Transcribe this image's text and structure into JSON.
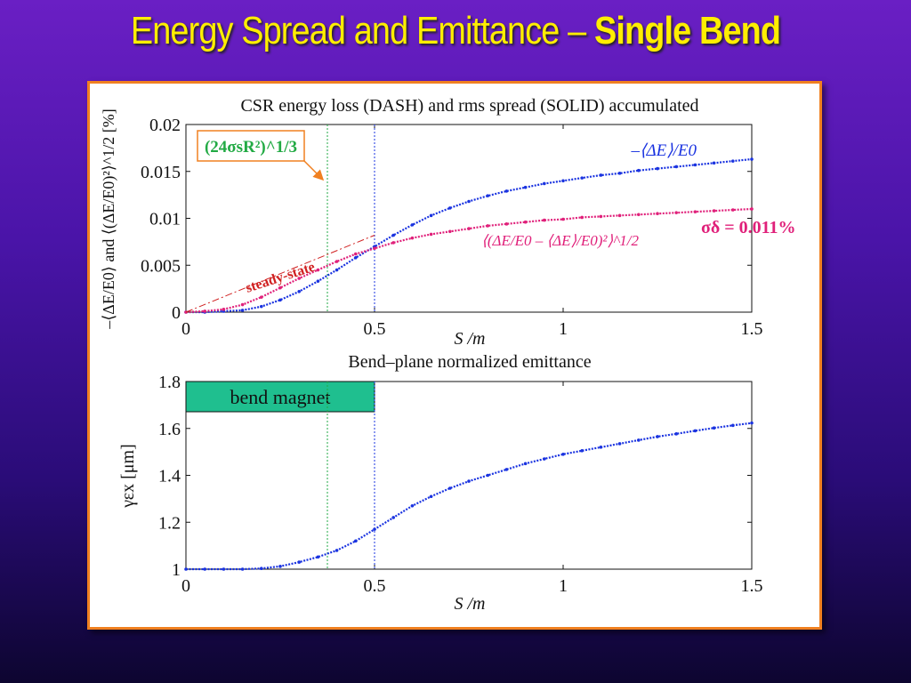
{
  "slide": {
    "title_main": "Energy Spread and Emittance – ",
    "title_bold": "Single Bend"
  },
  "colors": {
    "blue": "#1a33e0",
    "magenta": "#e0207a",
    "green": "#22aa44",
    "steady": "#d02020",
    "teal": "#1fbf8f"
  },
  "chart_data": [
    {
      "type": "line",
      "title": "CSR energy loss (DASH) and rms spread (SOLID) accumulated",
      "xlabel": "S /m",
      "ylabel": "–⟨ΔE/E0⟩ and ⟨(ΔE/E0)²⟩^1/2 [%]",
      "xlim": [
        0,
        1.5
      ],
      "ylim": [
        0,
        0.02
      ],
      "xticks": [
        0,
        0.5,
        1,
        1.5
      ],
      "xtick_labels": [
        "0",
        "0.5",
        "1",
        "1.5"
      ],
      "yticks": [
        0,
        0.005,
        0.01,
        0.015,
        0.02
      ],
      "ytick_labels": [
        "0",
        "0.005",
        "0.01",
        "0.015",
        "0.02"
      ],
      "vlines": [
        {
          "x": 0.375,
          "color": "green",
          "style": "dotted"
        },
        {
          "x": 0.5,
          "color": "blue",
          "style": "dotted"
        }
      ],
      "series": [
        {
          "name": "–⟨ΔE⟩/E0",
          "color": "blue",
          "x": [
            0,
            0.05,
            0.1,
            0.15,
            0.2,
            0.25,
            0.3,
            0.35,
            0.4,
            0.45,
            0.5,
            0.55,
            0.6,
            0.65,
            0.7,
            0.75,
            0.8,
            0.85,
            0.9,
            0.95,
            1.0,
            1.05,
            1.1,
            1.15,
            1.2,
            1.25,
            1.3,
            1.35,
            1.4,
            1.45,
            1.5
          ],
          "y": [
            0,
            0,
            0.0001,
            0.0002,
            0.0006,
            0.0013,
            0.0022,
            0.0033,
            0.0045,
            0.0058,
            0.007,
            0.0082,
            0.0093,
            0.0103,
            0.0111,
            0.0118,
            0.0124,
            0.0129,
            0.0133,
            0.0137,
            0.014,
            0.0143,
            0.0146,
            0.0148,
            0.0151,
            0.0153,
            0.0155,
            0.0157,
            0.0159,
            0.0161,
            0.0163
          ]
        },
        {
          "name": "⟨(ΔE/E0 – ⟨ΔE⟩/E0)²⟩^1/2",
          "color": "magenta",
          "x": [
            0,
            0.05,
            0.1,
            0.15,
            0.2,
            0.25,
            0.3,
            0.35,
            0.4,
            0.45,
            0.5,
            0.55,
            0.6,
            0.65,
            0.7,
            0.75,
            0.8,
            0.85,
            0.9,
            0.95,
            1.0,
            1.05,
            1.1,
            1.15,
            1.2,
            1.25,
            1.3,
            1.35,
            1.4,
            1.45,
            1.5
          ],
          "y": [
            0,
            0.0001,
            0.0003,
            0.0008,
            0.0016,
            0.0026,
            0.0036,
            0.0045,
            0.0054,
            0.0062,
            0.0068,
            0.0074,
            0.0079,
            0.0083,
            0.0086,
            0.0089,
            0.0092,
            0.0094,
            0.0096,
            0.0098,
            0.0099,
            0.0101,
            0.0102,
            0.0103,
            0.0104,
            0.0105,
            0.0106,
            0.0107,
            0.0108,
            0.0109,
            0.011
          ]
        },
        {
          "name": "steady-state",
          "color": "steady",
          "style": "dashdot",
          "x": [
            0,
            0.5
          ],
          "y": [
            0,
            0.0082
          ]
        }
      ],
      "annotations": {
        "box_label": "(24σsR²)^1/3",
        "steady_label": "steady-state",
        "blue_label": "–⟨ΔE⟩/E0",
        "magenta_label": "⟨(ΔE/E0 – ⟨ΔE⟩/E0)²⟩^1/2",
        "sigma_label": "σδ = 0.011%"
      }
    },
    {
      "type": "line",
      "title": "Bend–plane normalized emittance",
      "xlabel": "S /m",
      "ylabel": "γεx [μm]",
      "xlim": [
        0,
        1.5
      ],
      "ylim": [
        1,
        1.8
      ],
      "xticks": [
        0,
        0.5,
        1,
        1.5
      ],
      "xtick_labels": [
        "0",
        "0.5",
        "1",
        "1.5"
      ],
      "yticks": [
        1,
        1.2,
        1.4,
        1.6,
        1.8
      ],
      "ytick_labels": [
        "1",
        "1.2",
        "1.4",
        "1.6",
        "1.8"
      ],
      "vlines": [
        {
          "x": 0.375,
          "color": "green",
          "style": "dotted"
        },
        {
          "x": 0.5,
          "color": "blue",
          "style": "dotted"
        }
      ],
      "bend_magnet": {
        "label": "bend magnet",
        "x_range": [
          0,
          0.5
        ]
      },
      "series": [
        {
          "color": "blue",
          "x": [
            0,
            0.05,
            0.1,
            0.15,
            0.2,
            0.25,
            0.3,
            0.35,
            0.4,
            0.45,
            0.5,
            0.55,
            0.6,
            0.65,
            0.7,
            0.75,
            0.8,
            0.85,
            0.9,
            0.95,
            1.0,
            1.05,
            1.1,
            1.15,
            1.2,
            1.25,
            1.3,
            1.35,
            1.4,
            1.45,
            1.5
          ],
          "y": [
            1.0,
            1.0,
            1.0,
            1.0,
            1.003,
            1.012,
            1.03,
            1.052,
            1.08,
            1.12,
            1.17,
            1.22,
            1.27,
            1.31,
            1.345,
            1.375,
            1.4,
            1.425,
            1.45,
            1.47,
            1.49,
            1.505,
            1.52,
            1.535,
            1.55,
            1.565,
            1.577,
            1.59,
            1.602,
            1.613,
            1.623
          ]
        }
      ]
    }
  ]
}
